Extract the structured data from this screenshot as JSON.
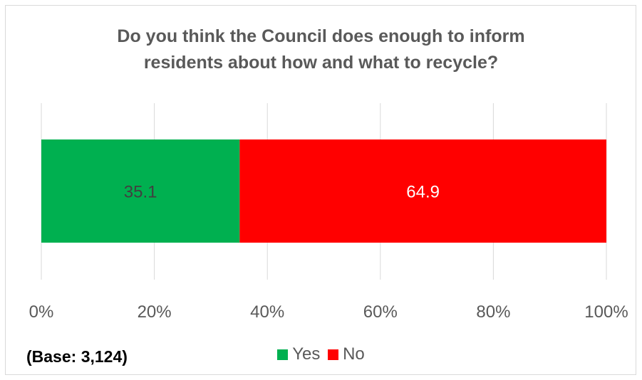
{
  "chart_data": {
    "type": "bar",
    "orientation": "horizontal",
    "stacked": true,
    "title_lines": [
      "Do you think the Council does enough to inform",
      "residents about how and what to recycle?"
    ],
    "categories": [
      ""
    ],
    "series": [
      {
        "name": "Yes",
        "values": [
          35.1
        ],
        "color": "#00b050",
        "label_color": "#404040"
      },
      {
        "name": "No",
        "values": [
          64.9
        ],
        "color": "#ff0000",
        "label_color": "#ffffff"
      }
    ],
    "xlim": [
      0,
      100
    ],
    "x_ticks": [
      0,
      20,
      40,
      60,
      80,
      100
    ],
    "x_tick_labels": [
      "0%",
      "20%",
      "40%",
      "60%",
      "80%",
      "100%"
    ],
    "grid": true,
    "legend_position": "bottom",
    "footnote": "(Base: 3,124)"
  }
}
